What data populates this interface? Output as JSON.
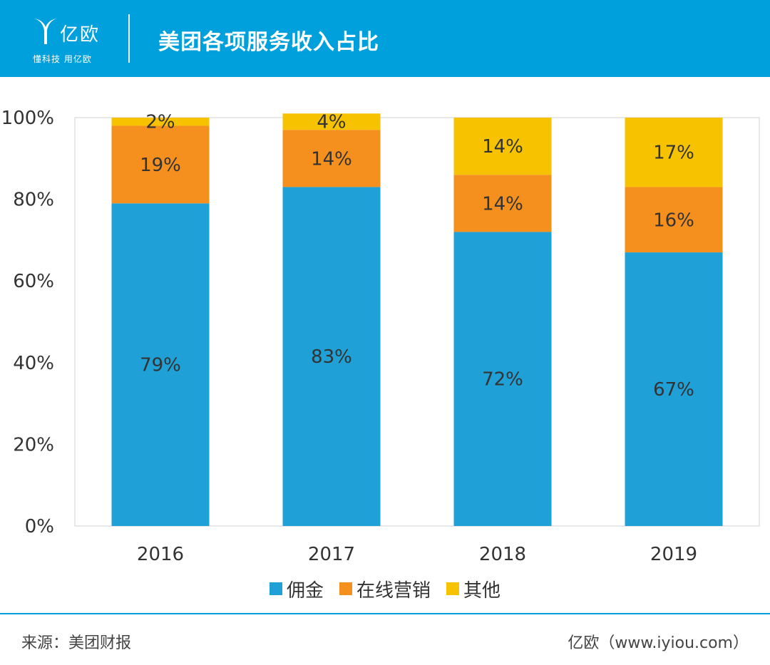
{
  "header": {
    "logo_text": "亿欧",
    "logo_slogan": "懂科技 用亿欧",
    "title": "美团各项服务收入占比"
  },
  "colors": {
    "header_bg": "#00a0dc",
    "series": [
      "#1fa0d6",
      "#f5901f",
      "#f7c300"
    ]
  },
  "chart_data": {
    "type": "bar",
    "stacked": true,
    "categories": [
      "2016",
      "2017",
      "2018",
      "2019"
    ],
    "series": [
      {
        "name": "佣金",
        "values": [
          79,
          83,
          72,
          67
        ],
        "labels": [
          "79%",
          "83%",
          "72%",
          "67%"
        ]
      },
      {
        "name": "在线营销",
        "values": [
          19,
          14,
          14,
          16
        ],
        "labels": [
          "19%",
          "14%",
          "14%",
          "16%"
        ]
      },
      {
        "name": "其他",
        "values": [
          2,
          4,
          14,
          17
        ],
        "labels": [
          "2%",
          "4%",
          "14%",
          "17%"
        ]
      }
    ],
    "yticks": [
      "0%",
      "20%",
      "40%",
      "60%",
      "80%",
      "100%"
    ],
    "ylim": [
      0,
      100
    ],
    "legend_position": "bottom"
  },
  "footer": {
    "source": "来源：美团财报",
    "credit": "亿欧（www.iyiou.com）"
  }
}
